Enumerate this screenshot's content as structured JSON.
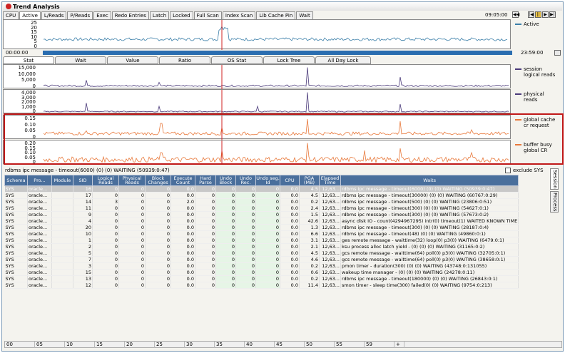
{
  "window": {
    "title": "Trend Analysis",
    "time": "09:05:00"
  },
  "top_tabs": [
    "CPU",
    "Active",
    "L/Reads",
    "P/Reads",
    "Exec",
    "Redo Entries",
    "Latch",
    "Locked",
    "Full Scan",
    "Index Scan",
    "Lib Cache Pin",
    "Wait"
  ],
  "top_tab_active": "Active",
  "overview": {
    "yticks": [
      "25",
      "20",
      "15",
      "10",
      "5",
      "0"
    ],
    "legend": "Active",
    "color": "#3a7ea8"
  },
  "timeline": {
    "start": "00:00:00",
    "end": "23:59:00",
    "color": "#2a6db0"
  },
  "stat_tabs": [
    "Stat",
    "Wait",
    "Value",
    "Ratio",
    "OS Stat",
    "Lock Tree",
    "All Day Lock"
  ],
  "stat_tab_active": "Stat",
  "charts": [
    {
      "yticks": [
        "15,000",
        "10,000",
        "5,000",
        "0"
      ],
      "legend": [
        "session",
        "logical reads"
      ],
      "color": "#4a3a7a"
    },
    {
      "yticks": [
        "4,000",
        "3,000",
        "2,000",
        "1,000",
        "0"
      ],
      "legend": [
        "physical",
        "reads"
      ],
      "color": "#4a3a7a"
    },
    {
      "yticks": [
        "0.15",
        "0.10",
        "0.05",
        "0"
      ],
      "legend": [
        "global cache",
        "cr request"
      ],
      "color": "#e8783a"
    },
    {
      "yticks": [
        "0.20",
        "0.15",
        "0.10",
        "0.05",
        "0"
      ],
      "legend": [
        "buffer busy",
        "global CR"
      ],
      "color": "#e8783a"
    }
  ],
  "selection_info": "rdbms ipc message - timeout(6000) (0) (0) WAITING (50939:0:47)",
  "exclude_sys": "exclude SYS",
  "columns": [
    "Schema",
    "Pro...",
    "Module",
    "SID",
    "Logical Reads",
    "Physical Reads",
    "Block Changes",
    "Execute Count",
    "Hard Parse",
    "Undo Block",
    "Undo Rec.",
    "Undo seg. Id",
    "CPU",
    "PGA (MB)",
    "Elapsed Time",
    "Waits"
  ],
  "rows": [
    [
      "SYS",
      "oracle...",
      "",
      "16",
      "0",
      "0",
      "0",
      "0.0",
      "0",
      "0",
      "0",
      "0",
      "0.0",
      "4.5",
      "12,63...",
      "rdbms ipc message - timeout(6000) (0) (0) WAITING (50939:0:47)"
    ],
    [
      "SYS",
      "oracle...",
      "",
      "17",
      "0",
      "0",
      "0",
      "0.0",
      "0",
      "0",
      "0",
      "0",
      "0.0",
      "4.5",
      "12,63...",
      "rdbms ipc message - timeout(30000) (0) (0) WAITING (60767:0:29)"
    ],
    [
      "SYS",
      "oracle...",
      "",
      "14",
      "3",
      "0",
      "0",
      "2.0",
      "0",
      "0",
      "0",
      "0",
      "0.0",
      "0.2",
      "12,63...",
      "rdbms ipc message - timeout(500) (0) (0) WAITING (23806:0:51)"
    ],
    [
      "SYS",
      "oracle...",
      "",
      "11",
      "0",
      "0",
      "0",
      "0.0",
      "0",
      "0",
      "0",
      "0",
      "0.0",
      "2.4",
      "12,63...",
      "rdbms ipc message - timeout(300) (0) (0) WAITING (54627:0:1)"
    ],
    [
      "SYS",
      "oracle...",
      "",
      "9",
      "0",
      "0",
      "0",
      "0.0",
      "0",
      "0",
      "0",
      "0",
      "0.0",
      "1.5",
      "12,63...",
      "rdbms ipc message - timeout(300) (0) (0) WAITING (57673:0:2)"
    ],
    [
      "SYS",
      "oracle...",
      "",
      "4",
      "0",
      "0",
      "0",
      "0.0",
      "0",
      "0",
      "0",
      "0",
      "0.0",
      "42.6",
      "12,63...",
      "async disk IO - count(4294967295) intr(0) timeout(1) WAITED KNOWN TIME"
    ],
    [
      "SYS",
      "oracle...",
      "",
      "20",
      "0",
      "0",
      "0",
      "0.0",
      "0",
      "0",
      "0",
      "0",
      "0.0",
      "1.3",
      "12,63...",
      "rdbms ipc message - timeout(300) (0) (0) WAITING (28187:0:4)"
    ],
    [
      "SYS",
      "oracle...",
      "",
      "10",
      "0",
      "0",
      "0",
      "0.0",
      "0",
      "0",
      "0",
      "0",
      "0.0",
      "6.6",
      "12,63...",
      "rdbms ipc message - timeout(48) (0) (0) WAITING (49860:0:1)"
    ],
    [
      "SYS",
      "oracle...",
      "",
      "1",
      "0",
      "0",
      "0",
      "0.0",
      "0",
      "0",
      "0",
      "0",
      "0.0",
      "3.1",
      "12,63...",
      "ges remote message - waittime(32) loop(0) p3(0) WAITING (6479:0:1)"
    ],
    [
      "SYS",
      "oracle...",
      "",
      "2",
      "0",
      "0",
      "0",
      "0.0",
      "0",
      "0",
      "0",
      "0",
      "0.0",
      "2.1",
      "12,63...",
      "ksu process alloc latch yield - (0) (0) (0) WAITING (31165:0:2)"
    ],
    [
      "SYS",
      "oracle...",
      "",
      "5",
      "0",
      "0",
      "0",
      "0.0",
      "0",
      "0",
      "0",
      "0",
      "0.0",
      "4.5",
      "12,63...",
      "gcs remote message - waittime(64) poll(0) p3(0) WAITING (32705:0:1)"
    ],
    [
      "SYS",
      "oracle...",
      "",
      "7",
      "0",
      "0",
      "0",
      "0.0",
      "0",
      "0",
      "0",
      "0",
      "0.0",
      "4.6",
      "12,63...",
      "gcs remote message - waittime(64) poll(0) p3(0) WAITING (38658:0:1)"
    ],
    [
      "SYS",
      "oracle...",
      "",
      "3",
      "0",
      "0",
      "0",
      "0.0",
      "0",
      "0",
      "0",
      "0",
      "0.0",
      "0.2",
      "12,63...",
      "pmon timer - duration(300) (0) (0) WAITING (43748:0:131055)"
    ],
    [
      "SYS",
      "oracle...",
      "",
      "15",
      "0",
      "0",
      "0",
      "0.0",
      "0",
      "0",
      "0",
      "0",
      "0.0",
      "0.6",
      "12,63...",
      "wakeup time manager - (0) (0) (0) WAITING (24278:0:11)"
    ],
    [
      "SYS",
      "oracle...",
      "",
      "13",
      "0",
      "0",
      "0",
      "0.0",
      "0",
      "0",
      "0",
      "0",
      "0.0",
      "0.2",
      "12,63...",
      "rdbms ipc message - timeout(180000) (0) (0) WAITING (26843:0:1)"
    ],
    [
      "SYS",
      "oracle...",
      "",
      "12",
      "0",
      "0",
      "0",
      "0.0",
      "0",
      "0",
      "0",
      "0",
      "0.0",
      "11.4",
      "12,63...",
      "smon timer - sleep time(300) failed(0) (0) WAITING (9754:0:213)"
    ]
  ],
  "side_tabs": [
    "Session",
    "Process"
  ],
  "hscroll_labels": [
    "00",
    "05",
    "10",
    "15",
    "20",
    "25",
    "30",
    "35",
    "40",
    "45",
    "50",
    "55",
    "59",
    "+"
  ]
}
